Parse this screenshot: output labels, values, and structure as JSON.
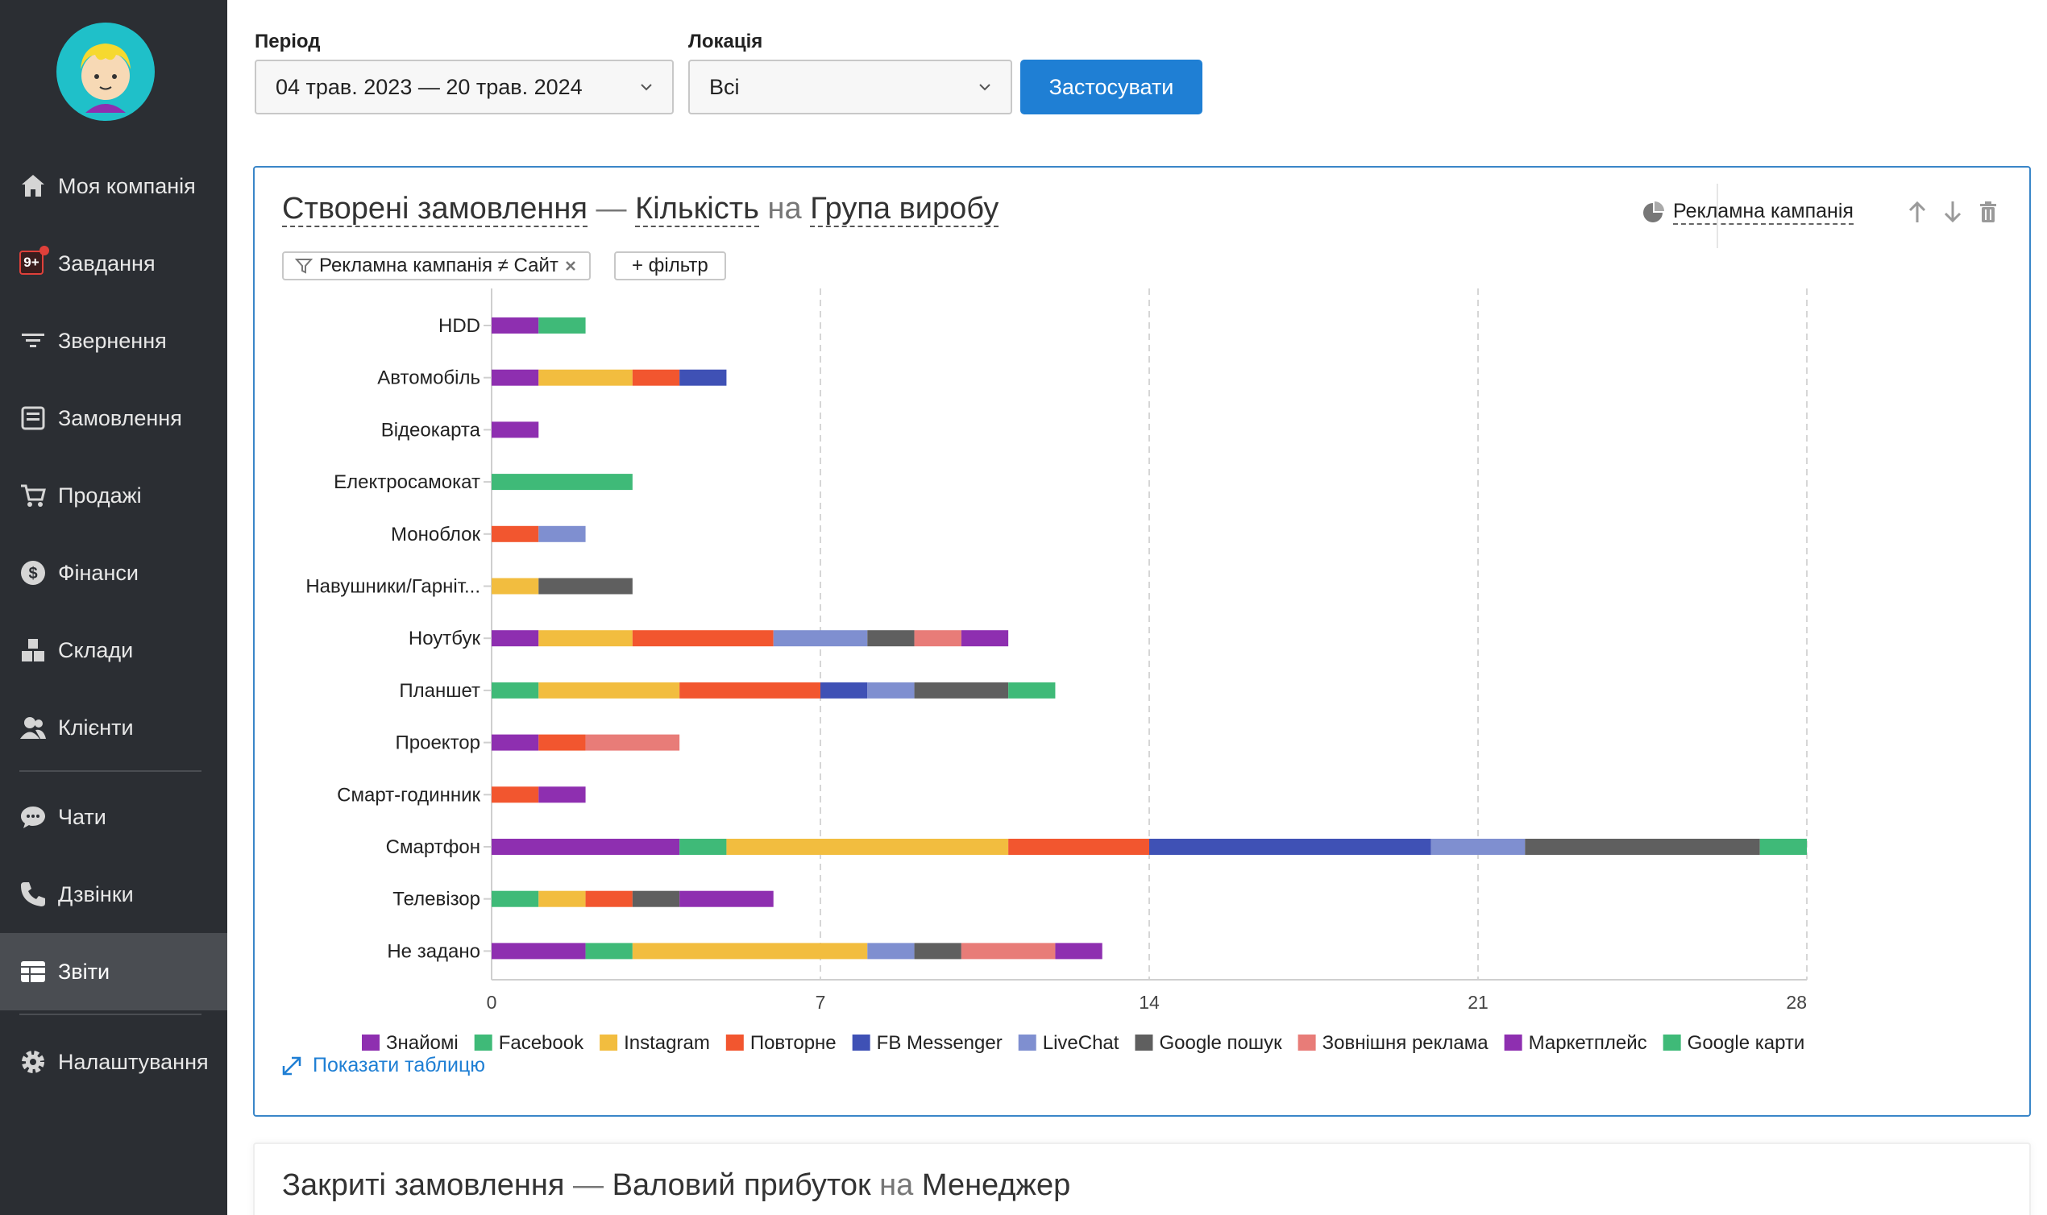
{
  "sidebar": {
    "badge": "9+",
    "items": [
      {
        "label": "Моя компанія",
        "icon": "home-icon"
      },
      {
        "label": "Завдання",
        "icon": "tasks-icon"
      },
      {
        "label": "Звернення",
        "icon": "funnel-icon"
      },
      {
        "label": "Замовлення",
        "icon": "orders-icon"
      },
      {
        "label": "Продажі",
        "icon": "cart-icon"
      },
      {
        "label": "Фінанси",
        "icon": "dollar-icon"
      },
      {
        "label": "Склади",
        "icon": "warehouse-icon"
      },
      {
        "label": "Клієнти",
        "icon": "users-icon"
      },
      {
        "label": "Чати",
        "icon": "chat-icon"
      },
      {
        "label": "Дзвінки",
        "icon": "phone-icon"
      },
      {
        "label": "Звіти",
        "icon": "reports-icon"
      },
      {
        "label": "Налаштування",
        "icon": "gear-icon"
      }
    ],
    "active_item": "Звіти"
  },
  "filters": {
    "period_label": "Період",
    "period_value": "04 трав. 2023 — 20 трав. 2024",
    "location_label": "Локація",
    "location_value": "Всі",
    "apply_label": "Застосувати"
  },
  "report": {
    "title_metric_source": "Створені замовлення",
    "title_dash": "—",
    "title_measure": "Кількість",
    "title_on": "на",
    "title_dimension": "Група виробу",
    "group_by": "Рекламна кампанія",
    "filter_chip": "Рекламна кампанія ≠ Сайт",
    "add_filter": "+ фільтр",
    "show_table": "Показати таблицю"
  },
  "report2": {
    "title_metric_source": "Закриті замовлення",
    "title_dash": "—",
    "title_measure": "Валовий прибуток",
    "title_on": "на",
    "title_dimension": "Менеджер"
  },
  "chart_data": {
    "type": "bar",
    "orientation": "horizontal",
    "stacked": true,
    "categories": [
      "HDD",
      "Автомобіль",
      "Відеокарта",
      "Електросамокат",
      "Моноблок",
      "Навушники/Гарніт...",
      "Ноутбук",
      "Планшет",
      "Проектор",
      "Смарт-годинник",
      "Смартфон",
      "Телевізор",
      "Не задано"
    ],
    "xlim": [
      0,
      28
    ],
    "xticks": [
      0,
      7,
      14,
      21,
      28
    ],
    "grid": "vertical-dashed",
    "legend_position": "bottom",
    "series": [
      {
        "name": "Знайомі",
        "color": "#8e2fb0",
        "values": [
          1,
          1,
          1,
          0,
          0,
          0,
          1,
          0,
          1,
          0,
          4,
          0,
          2
        ]
      },
      {
        "name": "Facebook",
        "color": "#3fba78",
        "values": [
          1,
          0,
          0,
          3,
          0,
          0,
          0,
          1,
          0,
          0,
          1,
          1,
          1
        ]
      },
      {
        "name": "Instagram",
        "color": "#f2bd3f",
        "values": [
          0,
          2,
          0,
          0,
          0,
          1,
          2,
          3,
          0,
          0,
          6,
          1,
          5
        ]
      },
      {
        "name": "Повторне",
        "color": "#f2562f",
        "values": [
          0,
          1,
          0,
          0,
          1,
          0,
          3,
          3,
          1,
          1,
          3,
          1,
          0
        ]
      },
      {
        "name": "FB Messenger",
        "color": "#3f51b5",
        "values": [
          0,
          1,
          0,
          0,
          0,
          0,
          0,
          1,
          0,
          0,
          6,
          0,
          0
        ]
      },
      {
        "name": "LiveChat",
        "color": "#7f8fd0",
        "values": [
          0,
          0,
          0,
          0,
          1,
          0,
          2,
          1,
          0,
          0,
          2,
          0,
          1
        ]
      },
      {
        "name": "Google пошук",
        "color": "#5f5f5f",
        "values": [
          0,
          0,
          0,
          0,
          0,
          2,
          1,
          2,
          0,
          0,
          5,
          1,
          1
        ]
      },
      {
        "name": "Зовнішня реклама",
        "color": "#e87c78",
        "values": [
          0,
          0,
          0,
          0,
          0,
          0,
          1,
          0,
          2,
          0,
          0,
          0,
          2
        ]
      },
      {
        "name": "Маркетплейс",
        "color": "#8e2fb0",
        "values": [
          0,
          0,
          0,
          0,
          0,
          0,
          1,
          0,
          0,
          1,
          0,
          2,
          1
        ]
      },
      {
        "name": "Google карти",
        "color": "#3fba78",
        "values": [
          0,
          0,
          0,
          0,
          0,
          0,
          0,
          1,
          0,
          0,
          1,
          0,
          0
        ]
      }
    ]
  }
}
